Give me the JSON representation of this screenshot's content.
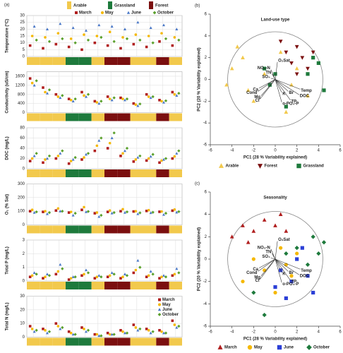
{
  "chart_data": [
    {
      "type": "dot",
      "panel_label": "(a)",
      "ylabel": "Temperature (°C)",
      "land_use_legend": [
        {
          "name": "Arable",
          "color": "#f2c94c"
        },
        {
          "name": "Grassland",
          "color": "#1e7a3c"
        },
        {
          "name": "Forest",
          "color": "#7b0f0f"
        }
      ],
      "categories": [
        null,
        null,
        null,
        null,
        null,
        null,
        null,
        null,
        null,
        null,
        null,
        null
      ],
      "ylim": [
        0,
        30
      ],
      "yticks": [
        0,
        5,
        10,
        15,
        20,
        25,
        30
      ],
      "grid": true,
      "legend": "top-right",
      "series": [
        {
          "name": "March",
          "color": "#b01e1e",
          "marker": "square",
          "values": [
            8,
            6,
            9,
            7,
            5,
            10,
            8,
            6,
            9,
            7,
            11,
            8
          ]
        },
        {
          "name": "May",
          "color": "#f5b800",
          "marker": "circle",
          "values": [
            15,
            14,
            17,
            13,
            16,
            15,
            18,
            14,
            16,
            15,
            17,
            14
          ]
        },
        {
          "name": "June",
          "color": "#4a78c8",
          "marker": "triangle",
          "values": [
            22,
            20,
            24,
            21,
            19,
            23,
            22,
            20,
            25,
            21,
            23,
            20
          ]
        },
        {
          "name": "October",
          "color": "#5aa02c",
          "marker": "diamond",
          "values": [
            12,
            11,
            13,
            10,
            12,
            14,
            11,
            13,
            12,
            10,
            13,
            12
          ]
        }
      ]
    },
    {
      "type": "dot",
      "ylabel": "Conductivity (uS/cm)",
      "categories": [
        null,
        null,
        null,
        null,
        null,
        null,
        null,
        null,
        null,
        null,
        null,
        null
      ],
      "ylim": [
        0,
        1800
      ],
      "yticks": [
        0,
        400,
        800,
        1200,
        1600
      ],
      "grid": true,
      "series": [
        {
          "color": "#b01e1e",
          "marker": "square",
          "values": [
            1500,
            1100,
            800,
            600,
            900,
            500,
            700,
            650,
            400,
            800,
            550,
            900
          ]
        },
        {
          "color": "#f5b800",
          "marker": "circle",
          "values": [
            1300,
            900,
            700,
            550,
            750,
            450,
            600,
            600,
            350,
            700,
            500,
            800
          ]
        },
        {
          "color": "#4a78c8",
          "marker": "triangle",
          "values": [
            1200,
            850,
            650,
            500,
            700,
            400,
            550,
            550,
            300,
            650,
            450,
            750
          ]
        },
        {
          "color": "#5aa02c",
          "marker": "diamond",
          "values": [
            1400,
            1000,
            750,
            600,
            800,
            500,
            650,
            600,
            380,
            700,
            520,
            850
          ]
        }
      ]
    },
    {
      "type": "dot",
      "ylabel": "DOC (mg/L)",
      "categories": [
        null,
        null,
        null,
        null,
        null,
        null,
        null,
        null,
        null,
        null,
        null,
        null
      ],
      "ylim": [
        0,
        80
      ],
      "yticks": [
        0,
        20,
        40,
        60,
        80
      ],
      "grid": true,
      "series": [
        {
          "color": "#b01e1e",
          "marker": "square",
          "values": [
            15,
            12,
            20,
            10,
            18,
            35,
            40,
            25,
            14,
            16,
            12,
            20
          ]
        },
        {
          "color": "#f5b800",
          "marker": "circle",
          "values": [
            20,
            18,
            25,
            15,
            22,
            45,
            50,
            30,
            18,
            20,
            16,
            24
          ]
        },
        {
          "color": "#4a78c8",
          "marker": "triangle",
          "values": [
            25,
            20,
            30,
            18,
            28,
            55,
            60,
            35,
            22,
            24,
            18,
            30
          ]
        },
        {
          "color": "#5aa02c",
          "marker": "diamond",
          "values": [
            30,
            25,
            35,
            22,
            30,
            60,
            70,
            40,
            25,
            28,
            20,
            35
          ]
        }
      ]
    },
    {
      "type": "dot",
      "ylabel": "O₂ (% Sat)",
      "categories": [
        null,
        null,
        null,
        null,
        null,
        null,
        null,
        null,
        null,
        null,
        null,
        null
      ],
      "ylim": [
        0,
        300
      ],
      "yticks": [
        0,
        100,
        200,
        300
      ],
      "grid": true,
      "series": [
        {
          "color": "#b01e1e",
          "marker": "square",
          "values": [
            100,
            95,
            105,
            90,
            110,
            85,
            95,
            100,
            98,
            102,
            96,
            104
          ]
        },
        {
          "color": "#f5b800",
          "marker": "circle",
          "values": [
            110,
            100,
            120,
            95,
            130,
            90,
            105,
            115,
            100,
            108,
            98,
            112
          ]
        },
        {
          "color": "#4a78c8",
          "marker": "triangle",
          "values": [
            90,
            80,
            100,
            70,
            95,
            60,
            85,
            90,
            80,
            88,
            75,
            92
          ]
        },
        {
          "color": "#5aa02c",
          "marker": "diamond",
          "values": [
            95,
            90,
            100,
            85,
            98,
            70,
            90,
            95,
            88,
            92,
            85,
            97
          ]
        }
      ]
    },
    {
      "type": "dot",
      "ylabel": "Total P (mg/L)",
      "categories": [
        null,
        null,
        null,
        null,
        null,
        null,
        null,
        null,
        null,
        null,
        null,
        null
      ],
      "ylim": [
        0,
        3
      ],
      "yticks": [
        0,
        1,
        2,
        3
      ],
      "grid": true,
      "series": [
        {
          "color": "#b01e1e",
          "marker": "square",
          "values": [
            0.3,
            0.2,
            0.5,
            0.1,
            0.4,
            0.2,
            0.3,
            0.2,
            0.6,
            0.3,
            0.2,
            0.4
          ]
        },
        {
          "color": "#f5b800",
          "marker": "circle",
          "values": [
            0.4,
            0.3,
            0.7,
            0.2,
            0.5,
            0.3,
            0.4,
            0.3,
            0.8,
            0.4,
            0.3,
            0.5
          ]
        },
        {
          "color": "#4a78c8",
          "marker": "triangle",
          "values": [
            0.6,
            0.5,
            1.2,
            0.3,
            0.8,
            0.4,
            0.6,
            0.5,
            1.5,
            0.7,
            0.4,
            0.9
          ]
        },
        {
          "color": "#5aa02c",
          "marker": "diamond",
          "values": [
            0.5,
            0.4,
            0.9,
            0.3,
            0.6,
            0.3,
            0.5,
            0.4,
            1.0,
            0.5,
            0.3,
            0.6
          ]
        }
      ]
    },
    {
      "type": "dot",
      "ylabel": "Total N (mg/L)",
      "categories": [
        null,
        null,
        null,
        null,
        null,
        null,
        null,
        null,
        null,
        null,
        null,
        null
      ],
      "ylim": [
        0,
        30
      ],
      "yticks": [
        0,
        10,
        20,
        30
      ],
      "grid": true,
      "legend": "right",
      "series": [
        {
          "name": "March",
          "color": "#b01e1e",
          "marker": "square",
          "values": [
            8,
            6,
            10,
            4,
            7,
            2,
            3,
            5,
            9,
            6,
            5,
            12
          ]
        },
        {
          "name": "May",
          "color": "#f5b800",
          "marker": "circle",
          "values": [
            6,
            5,
            8,
            3,
            6,
            2,
            2,
            4,
            7,
            5,
            4,
            9
          ]
        },
        {
          "name": "June",
          "color": "#4a78c8",
          "marker": "triangle",
          "values": [
            4,
            3,
            6,
            2,
            4,
            1,
            2,
            3,
            5,
            3,
            3,
            7
          ]
        },
        {
          "name": "October",
          "color": "#5aa02c",
          "marker": "diamond",
          "values": [
            5,
            4,
            7,
            2,
            5,
            1,
            2,
            3,
            6,
            4,
            3,
            8
          ]
        }
      ]
    },
    {
      "type": "scatter",
      "panel_label": "(b)",
      "title": "Land-use type",
      "xlabel": "PC1 (28 % Variability explained)",
      "ylabel": "PC2 (20 % Variability explained)",
      "xlim": [
        -6,
        6
      ],
      "ylim": [
        -6,
        6
      ],
      "xticks": [
        -6,
        -4,
        -2,
        0,
        2,
        4,
        6
      ],
      "yticks": [
        -6,
        -4,
        -2,
        0,
        2,
        4,
        6
      ],
      "legend": "bottom",
      "series": [
        {
          "name": "Arable",
          "color": "#f2c94c",
          "marker": "triangle",
          "x": [
            -4,
            -3,
            -2.5,
            -1,
            0.5,
            1.5,
            3,
            -2,
            -4.5,
            2,
            1,
            -3.5
          ],
          "y": [
            1,
            2,
            -1,
            0.5,
            2.5,
            -0.5,
            -1.5,
            -2,
            -0.5,
            1,
            -3,
            3
          ]
        },
        {
          "name": "Forest",
          "color": "#7b0f0f",
          "marker": "triangle-down",
          "x": [
            0.5,
            1,
            2,
            1.5,
            2.5,
            3,
            2,
            3.5
          ],
          "y": [
            3.5,
            2.5,
            3,
            1.5,
            2,
            1,
            0.5,
            2.5
          ]
        },
        {
          "name": "Grassland",
          "color": "#1e7a3c",
          "marker": "square",
          "x": [
            -1,
            0,
            3.5,
            4,
            3,
            4.5,
            -0.5,
            1
          ],
          "y": [
            1,
            0.5,
            2,
            1.5,
            0.5,
            -1,
            -0.5,
            -2.5
          ]
        }
      ],
      "loadings": [
        {
          "label": "O₂Sat",
          "x": 0.2,
          "y": 1.6
        },
        {
          "label": "NO₃-N",
          "x": -0.4,
          "y": 0.9
        },
        {
          "label": "TN",
          "x": -0.3,
          "y": 0.5
        },
        {
          "label": "SO₄",
          "x": -0.4,
          "y": 0.1
        },
        {
          "label": "Ca",
          "x": -1.5,
          "y": -0.8
        },
        {
          "label": "Cond",
          "x": -1.6,
          "y": -1.1
        },
        {
          "label": "Mg",
          "x": -1.3,
          "y": -1.5
        },
        {
          "label": "Cl",
          "x": -1.4,
          "y": -1.8
        },
        {
          "label": "K",
          "x": 0.6,
          "y": -1.2
        },
        {
          "label": "Br",
          "x": 1.2,
          "y": -1.1
        },
        {
          "label": "Temp",
          "x": 2.3,
          "y": -0.9
        },
        {
          "label": "DOC",
          "x": 2.2,
          "y": -1.4
        },
        {
          "label": "o-PO₄-P",
          "x": 0.6,
          "y": -2.1
        },
        {
          "label": "TP",
          "x": 1.4,
          "y": -1.9
        }
      ]
    },
    {
      "type": "scatter",
      "panel_label": "(c)",
      "title": "Seasonality",
      "xlabel": "PC1 (28 % Variability explained)",
      "ylabel": "PC2 (20 % Variability explained)",
      "xlim": [
        -6,
        6
      ],
      "ylim": [
        -6,
        6
      ],
      "xticks": [
        -6,
        -4,
        -2,
        0,
        2,
        4,
        6
      ],
      "yticks": [
        -6,
        -4,
        -2,
        0,
        2,
        4,
        6
      ],
      "legend": "bottom",
      "series": [
        {
          "name": "March",
          "color": "#b01e1e",
          "marker": "triangle",
          "x": [
            -3,
            -2,
            -1,
            0,
            1,
            -4,
            -2.5,
            0.5
          ],
          "y": [
            3,
            2.5,
            3.5,
            3,
            2.5,
            2,
            1.5,
            4
          ]
        },
        {
          "name": "May",
          "color": "#f5b800",
          "marker": "circle",
          "x": [
            -2,
            -1,
            0.5,
            1,
            2,
            -3,
            0,
            1.5
          ],
          "y": [
            0,
            -1,
            1,
            -0.5,
            0.5,
            -2,
            -3,
            -1.5
          ]
        },
        {
          "name": "June",
          "color": "#2b3fd6",
          "marker": "square",
          "x": [
            0.5,
            1.5,
            2,
            3,
            3.5,
            1,
            2.5,
            0
          ],
          "y": [
            -1,
            -2,
            0,
            -1.5,
            -3,
            -3.5,
            1,
            -2.5
          ]
        },
        {
          "name": "October",
          "color": "#1e7a3c",
          "marker": "diamond",
          "x": [
            2,
            3.5,
            4,
            3,
            -1,
            1,
            4.5,
            -2
          ],
          "y": [
            1,
            2,
            0.5,
            -0.5,
            -5,
            0.5,
            1.5,
            -3
          ]
        }
      ],
      "loadings": [
        {
          "label": "O₂Sat",
          "x": 0.2,
          "y": 1.6
        },
        {
          "label": "NO₃-N",
          "x": -0.4,
          "y": 0.9
        },
        {
          "label": "TN",
          "x": -0.3,
          "y": 0.5
        },
        {
          "label": "SO₄",
          "x": -0.4,
          "y": 0.1
        },
        {
          "label": "Ca",
          "x": -1.5,
          "y": -0.8
        },
        {
          "label": "Cond",
          "x": -1.6,
          "y": -1.1
        },
        {
          "label": "Mg",
          "x": -1.3,
          "y": -1.5
        },
        {
          "label": "Cl",
          "x": -1.4,
          "y": -1.8
        },
        {
          "label": "K",
          "x": 0.6,
          "y": -1.2
        },
        {
          "label": "Br",
          "x": 1.2,
          "y": -1.1
        },
        {
          "label": "Temp",
          "x": 2.3,
          "y": -0.9
        },
        {
          "label": "DOC",
          "x": 2.2,
          "y": -1.4
        },
        {
          "label": "o-PO₄-P",
          "x": 0.6,
          "y": -2.1
        },
        {
          "label": "TP",
          "x": 1.4,
          "y": -1.9
        }
      ]
    }
  ]
}
